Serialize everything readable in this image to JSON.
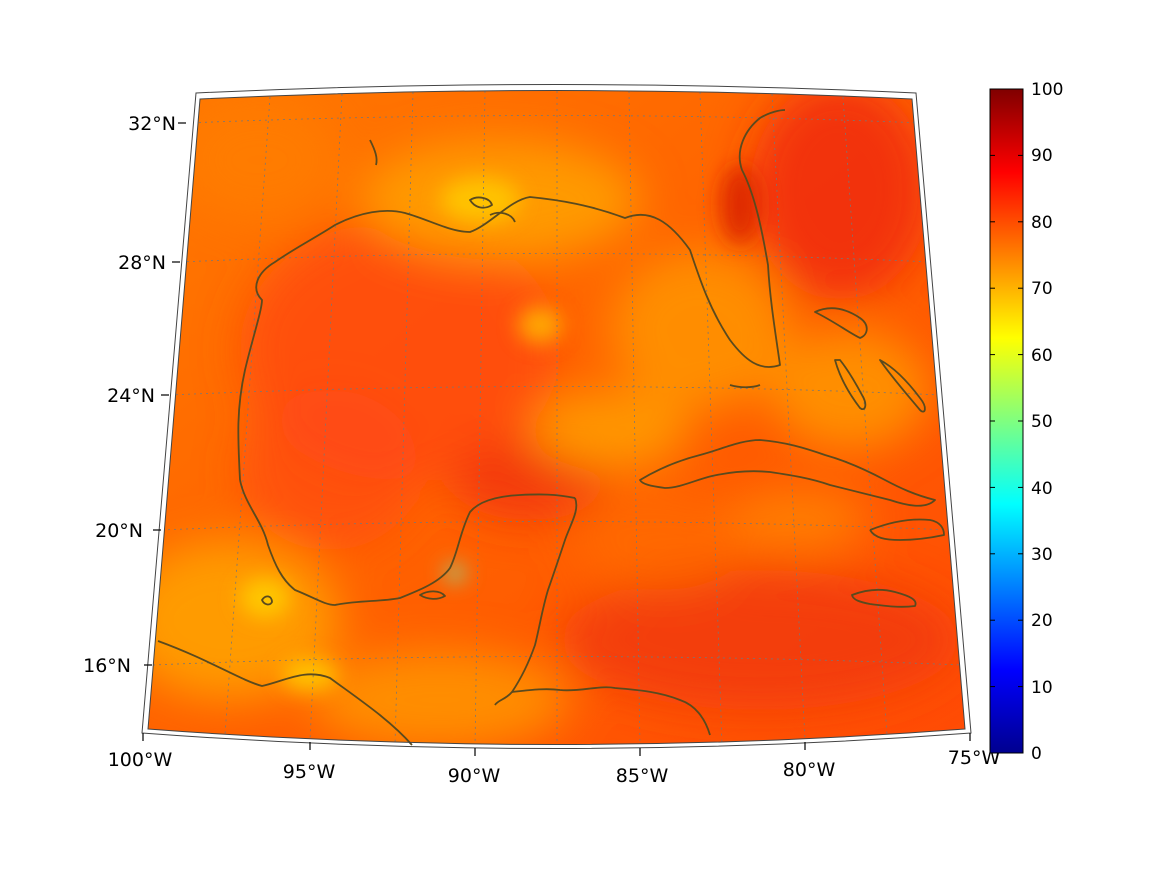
{
  "map": {
    "region": "Gulf of Mexico and Caribbean",
    "lon_labels": [
      "100°W",
      "95°W",
      "90°W",
      "85°W",
      "80°W",
      "75°W"
    ],
    "lat_labels": [
      "32°N",
      "28°N",
      "24°N",
      "20°N",
      "16°N"
    ],
    "field_colors": {
      "dominant": "#ff6a00",
      "warm": "#ff4a10",
      "hot": "#f0200c",
      "mild": "#ff9a00",
      "cool": "#ffc000",
      "coastline": "#5a4a1e"
    },
    "grid": true
  },
  "colorbar": {
    "ticks": [
      "100",
      "90",
      "80",
      "70",
      "60",
      "50",
      "40",
      "30",
      "20",
      "10",
      "0"
    ],
    "min": 0,
    "max": 100,
    "colormap": "jet"
  }
}
